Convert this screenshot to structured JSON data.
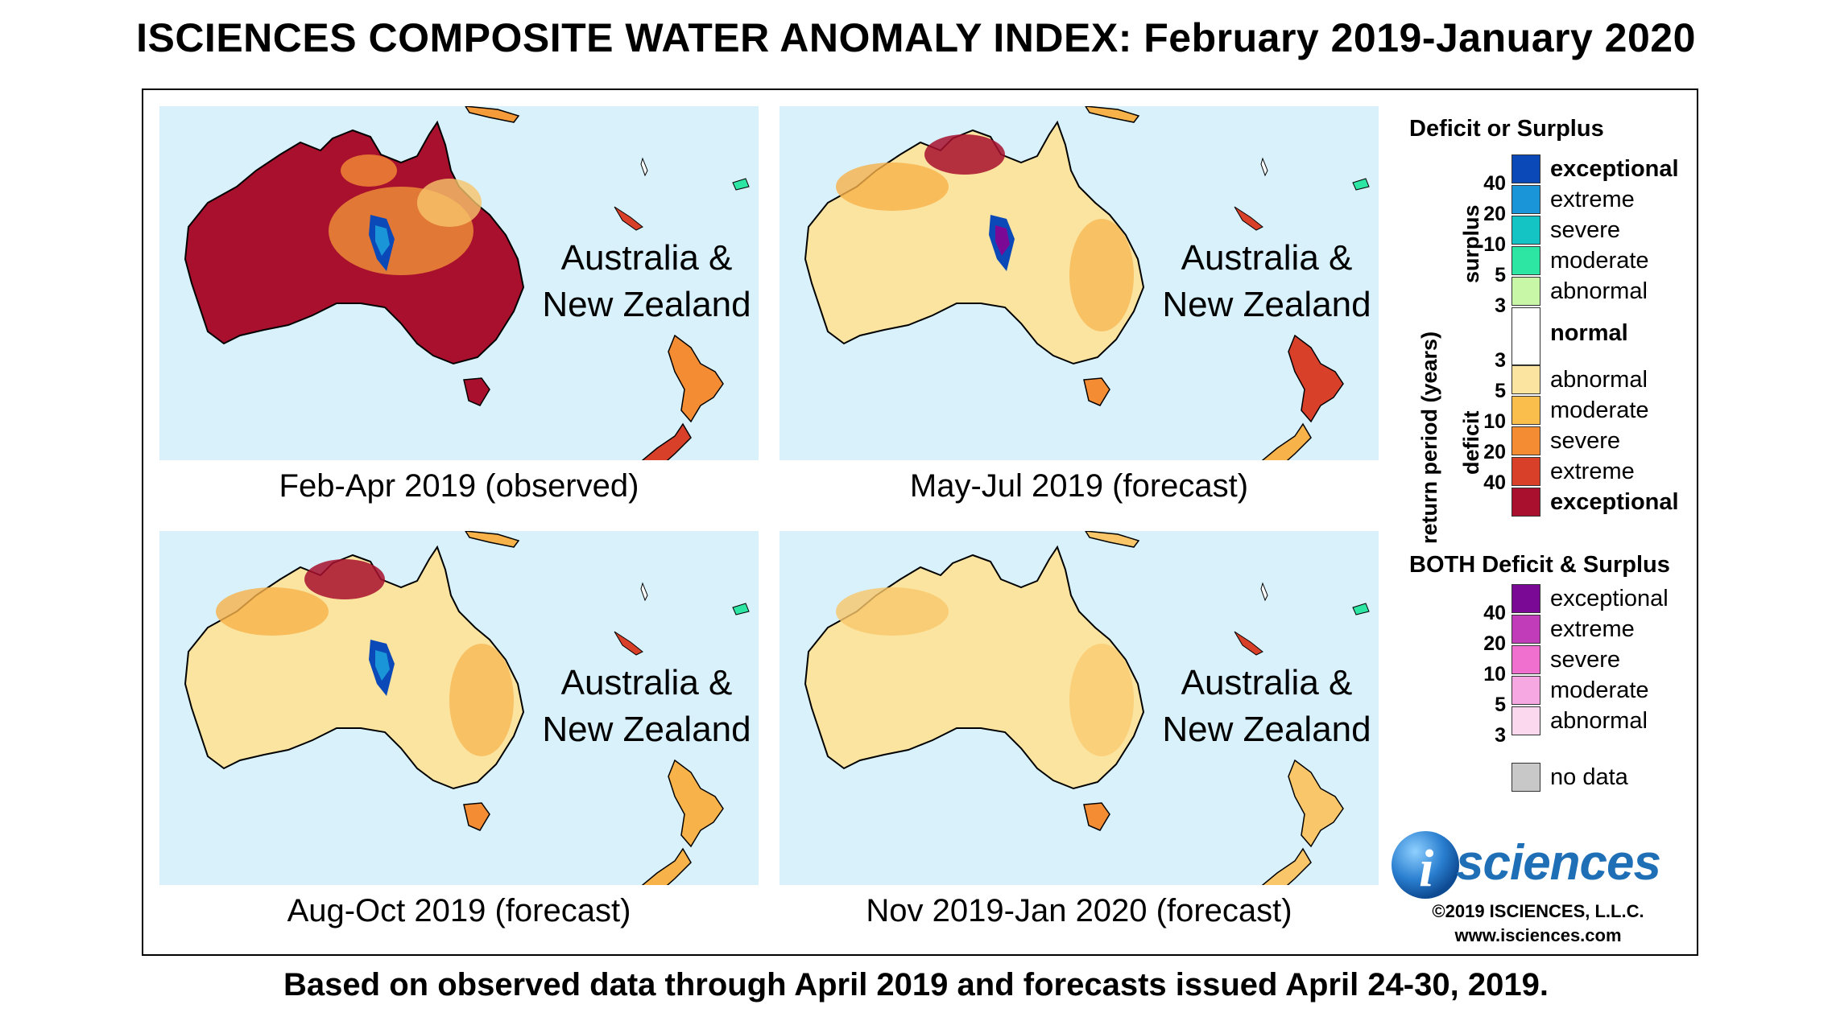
{
  "title": "ISCIENCES COMPOSITE WATER ANOMALY INDEX: February 2019-January 2020",
  "footer": "Based on observed data through April 2019 and forecasts issued April 24-30, 2019.",
  "map_label_line1": "Australia &",
  "map_label_line2": "New Zealand",
  "panels": [
    {
      "caption": "Feb-Apr 2019 (observed)",
      "fill": "#a8102e",
      "accent": "#f59b3a"
    },
    {
      "caption": "May-Jul 2019 (forecast)",
      "fill": "#fbe4a0",
      "accent": "#f7b24a"
    },
    {
      "caption": "Aug-Oct 2019 (forecast)",
      "fill": "#fbe4a0",
      "accent": "#f7b24a"
    },
    {
      "caption": "Nov 2019-Jan 2020 (forecast)",
      "fill": "#fbe4a0",
      "accent": "#f9c76a"
    }
  ],
  "legend": {
    "heading1": "Deficit or Surplus",
    "surplus_label": "surplus",
    "deficit_label": "deficit",
    "return_period_label": "return period (years)",
    "surplus_items": [
      {
        "label": "exceptional",
        "color": "#0b49b8"
      },
      {
        "label": "extreme",
        "color": "#1a95d8"
      },
      {
        "label": "severe",
        "color": "#14c4c4"
      },
      {
        "label": "moderate",
        "color": "#2ee6a3"
      },
      {
        "label": "abnormal",
        "color": "#c8f7a8"
      }
    ],
    "normal": {
      "label": "normal",
      "color": "#ffffff"
    },
    "deficit_items": [
      {
        "label": "abnormal",
        "color": "#fbe4a0"
      },
      {
        "label": "moderate",
        "color": "#f9be4c"
      },
      {
        "label": "severe",
        "color": "#f48c34"
      },
      {
        "label": "extreme",
        "color": "#d8402a"
      },
      {
        "label": "exceptional",
        "color": "#a8102e"
      }
    ],
    "surplus_ticks": [
      "40",
      "20",
      "10",
      "5",
      "3"
    ],
    "deficit_ticks": [
      "3",
      "5",
      "10",
      "20",
      "40"
    ],
    "heading2": "BOTH Deficit & Surplus",
    "both_items": [
      {
        "label": "exceptional",
        "color": "#7a0a96"
      },
      {
        "label": "extreme",
        "color": "#c03cb8"
      },
      {
        "label": "severe",
        "color": "#f070d0"
      },
      {
        "label": "moderate",
        "color": "#f6a8e2"
      },
      {
        "label": "abnormal",
        "color": "#fcd8ef"
      }
    ],
    "both_ticks": [
      "40",
      "20",
      "10",
      "5",
      "3"
    ],
    "no_data": {
      "label": "no data",
      "color": "#c8c8c8"
    }
  },
  "logo_text": "sciences",
  "logo_letter": "i",
  "copyright": "©2019 ISCIENCES, L.L.C.",
  "website": "www.isciences.com"
}
